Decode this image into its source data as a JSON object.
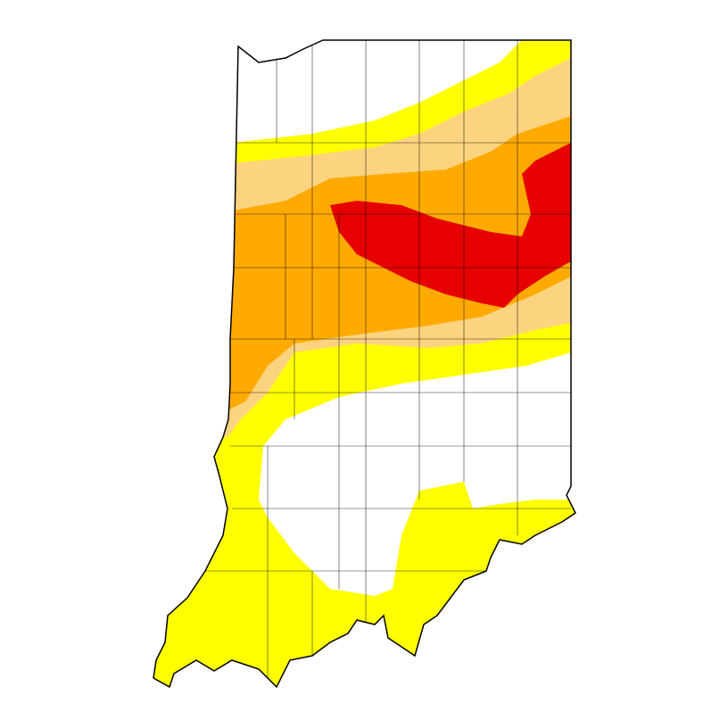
{
  "map": {
    "region": "Indiana",
    "colors": {
      "none": "#ffffff",
      "d0": "#ffff00",
      "d1": "#fcd37f",
      "d2": "#ffaa00",
      "d3": "#e60000",
      "outline": "#000000"
    }
  }
}
